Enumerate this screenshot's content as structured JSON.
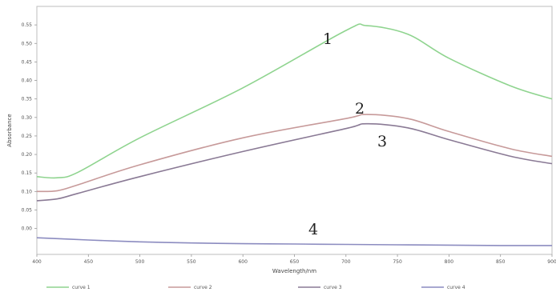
{
  "chart_data": {
    "type": "line",
    "title": "",
    "xlabel": "Wavelength/nm",
    "ylabel": "Absorbance",
    "xlim": [
      400,
      900
    ],
    "ylim": [
      -0.07,
      0.6
    ],
    "x_ticks": [
      "400",
      "450",
      "500",
      "550",
      "600",
      "650",
      "700",
      "750",
      "800",
      "850",
      "900"
    ],
    "y_ticks": [
      "0.00",
      "0.05",
      "0.10",
      "0.15",
      "0.20",
      "0.25",
      "0.30",
      "0.35",
      "0.40",
      "0.45",
      "0.50",
      "0.55"
    ],
    "grid": false,
    "legend_position": "bottom",
    "series": [
      {
        "name": "curve 1",
        "label": "1",
        "color": "#8fd48f",
        "x": [
          400,
          420,
          440,
          500,
          600,
          700,
          720,
          760,
          800,
          860,
          900
        ],
        "y": [
          0.14,
          0.137,
          0.152,
          0.245,
          0.38,
          0.535,
          0.548,
          0.525,
          0.46,
          0.385,
          0.35
        ]
      },
      {
        "name": "curve 2",
        "label": "2",
        "color": "#c79a9a",
        "x": [
          400,
          420,
          440,
          500,
          600,
          700,
          720,
          760,
          800,
          860,
          900
        ],
        "y": [
          0.1,
          0.102,
          0.118,
          0.172,
          0.245,
          0.297,
          0.308,
          0.297,
          0.262,
          0.215,
          0.195
        ]
      },
      {
        "name": "curve 3",
        "label": "3",
        "color": "#8a7a95",
        "x": [
          400,
          420,
          440,
          500,
          600,
          700,
          720,
          760,
          800,
          860,
          900
        ],
        "y": [
          0.075,
          0.08,
          0.095,
          0.14,
          0.208,
          0.27,
          0.283,
          0.272,
          0.24,
          0.195,
          0.175
        ]
      },
      {
        "name": "curve 4",
        "label": "4",
        "color": "#8c8cc0",
        "x": [
          400,
          450,
          500,
          550,
          600,
          650,
          700,
          750,
          800,
          850,
          900
        ],
        "y": [
          -0.025,
          -0.031,
          -0.036,
          -0.039,
          -0.041,
          -0.042,
          -0.043,
          -0.044,
          -0.045,
          -0.046,
          -0.046
        ]
      }
    ]
  }
}
